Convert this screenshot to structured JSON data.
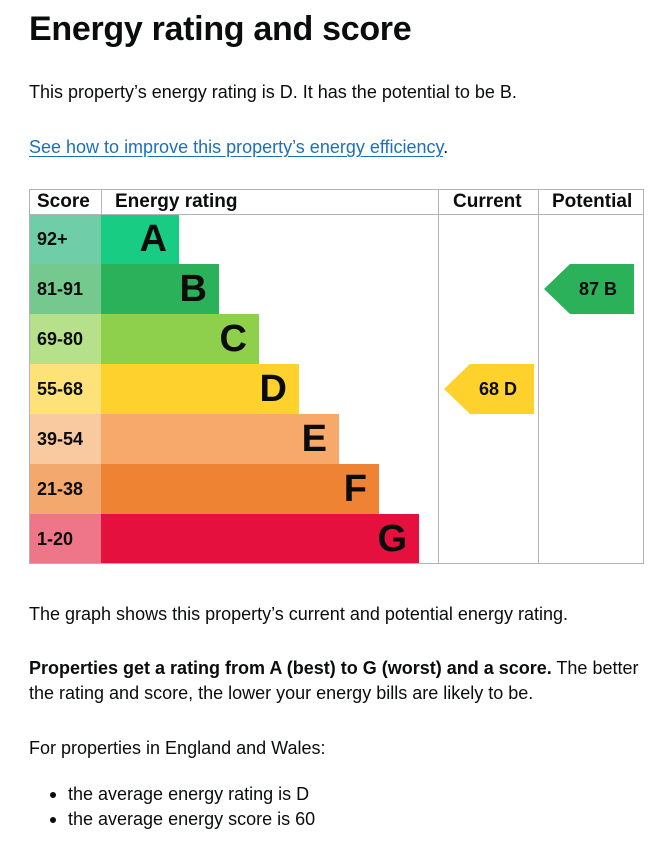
{
  "heading": "Energy rating and score",
  "intro": "This property’s energy rating is D. It has the potential to be B.",
  "improve_link": "See how to improve this property’s energy efficiency",
  "improve_link_suffix": ".",
  "chart": {
    "headers": {
      "score": "Score",
      "rating": "Energy rating",
      "current": "Current",
      "potential": "Potential"
    },
    "bands": [
      {
        "score": "92+",
        "letter": "A",
        "color": "#19cc84",
        "score_bg": "#6fcea7"
      },
      {
        "score": "81-91",
        "letter": "B",
        "color": "#2bb159",
        "score_bg": "#75c88e"
      },
      {
        "score": "69-80",
        "letter": "C",
        "color": "#8ecf4b",
        "score_bg": "#b6e18a"
      },
      {
        "score": "55-68",
        "letter": "D",
        "color": "#fed12d",
        "score_bg": "#fde27a"
      },
      {
        "score": "39-54",
        "letter": "E",
        "color": "#f7a96b",
        "score_bg": "#f9c9a0"
      },
      {
        "score": "21-38",
        "letter": "F",
        "color": "#ef8334",
        "score_bg": "#f3a86e"
      },
      {
        "score": "1-20",
        "letter": "G",
        "color": "#e6103e",
        "score_bg": "#ee7688"
      }
    ],
    "current": {
      "label": "68 D",
      "score": 68,
      "band": "D",
      "color": "#fed12d"
    },
    "potential": {
      "label": "87 B",
      "score": 87,
      "band": "B",
      "color": "#2bb159"
    }
  },
  "graph_text": "The graph shows this property’s current and potential energy rating.",
  "rating_bold": "Properties get a rating from A (best) to G (worst) and a score.",
  "rating_rest": " The better the rating and score, the lower your energy bills are likely to be.",
  "england_wales": "For properties in England and Wales:",
  "bullets": [
    "the average energy rating is D",
    "the average energy score is 60"
  ]
}
